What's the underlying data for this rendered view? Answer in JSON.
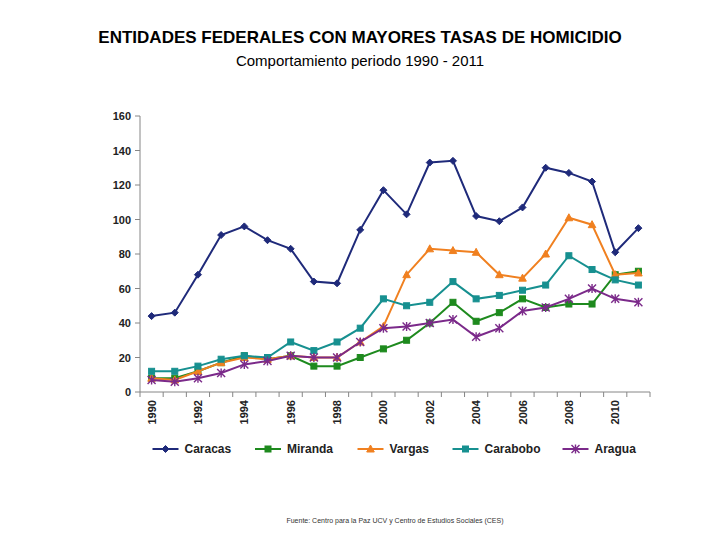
{
  "chart_data": {
    "type": "line",
    "title": "ENTIDADES FEDERALES CON MAYORES TASAS DE HOMICIDIO",
    "subtitle": "Comportamiento periodo 1990 - 2011",
    "annotations": [
      "Fuente: Centro para la Paz UCV y Centro de Estudios Sociales (CES)"
    ],
    "categories": [
      "1990",
      null,
      "1992",
      null,
      "1994",
      null,
      "1996",
      null,
      "1998",
      null,
      "2000",
      null,
      "2002",
      null,
      "2004",
      null,
      "2006",
      null,
      "2008",
      null,
      "2010",
      null
    ],
    "series": [
      {
        "name": "Caracas",
        "color": "#1f2a7a",
        "marker": "diamond",
        "values": [
          44,
          46,
          68,
          91,
          96,
          88,
          83,
          64,
          63,
          94,
          117,
          103,
          133,
          134,
          102,
          99,
          107,
          130,
          127,
          122,
          81,
          95
        ]
      },
      {
        "name": "Miranda",
        "color": "#1e8a1e",
        "marker": "square",
        "values": [
          8,
          8,
          12,
          17,
          21,
          19,
          21,
          15,
          15,
          20,
          25,
          30,
          40,
          52,
          41,
          46,
          54,
          49,
          51,
          51,
          68,
          70
        ]
      },
      {
        "name": "Vargas",
        "color": "#f08020",
        "marker": "triangle",
        "values": [
          8,
          7,
          12,
          17,
          20,
          19,
          21,
          20,
          20,
          29,
          38,
          68,
          83,
          82,
          81,
          68,
          66,
          80,
          101,
          97,
          68,
          69
        ]
      },
      {
        "name": "Carabobo",
        "color": "#179090",
        "marker": "square",
        "values": [
          12,
          12,
          15,
          19,
          21,
          20,
          29,
          24,
          29,
          37,
          54,
          50,
          52,
          64,
          54,
          56,
          59,
          62,
          79,
          71,
          65,
          62
        ]
      },
      {
        "name": "Aragua",
        "color": "#7b2a8a",
        "marker": "asterisk",
        "values": [
          7,
          6,
          8,
          11,
          16,
          18,
          21,
          20,
          20,
          29,
          37,
          38,
          40,
          42,
          32,
          37,
          47,
          49,
          54,
          60,
          54,
          52
        ]
      }
    ],
    "ylim": [
      0,
      160
    ],
    "yticks": [
      0,
      20,
      40,
      60,
      80,
      100,
      120,
      140,
      160
    ],
    "grid": false,
    "legend": "bottom"
  }
}
